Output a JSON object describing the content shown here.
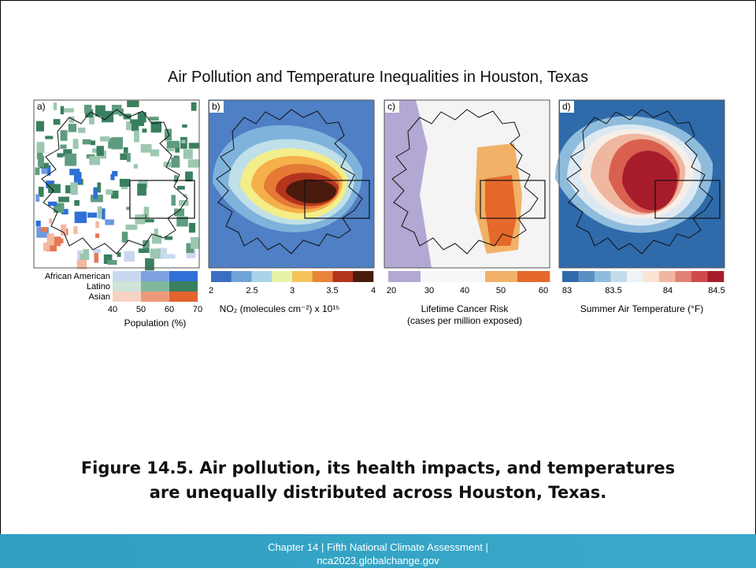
{
  "title": "Air Pollution and Temperature Inequalities in Houston, Texas",
  "panels": [
    {
      "label": "a)",
      "legend_rows": [
        "African American",
        "Latino",
        "Asian"
      ],
      "ticks": [
        "40",
        "50",
        "60",
        "70"
      ],
      "axis_label": "Population (%)"
    },
    {
      "label": "b)",
      "ticks": [
        "2",
        "2.5",
        "3",
        "3.5",
        "4"
      ],
      "axis_label": "NO₂ (molecules cm⁻²) x 10¹⁵"
    },
    {
      "label": "c)",
      "ticks": [
        "20",
        "30",
        "40",
        "50",
        "60"
      ],
      "axis_label": "Lifetime Cancer Risk",
      "axis_sublabel": "(cases per million exposed)"
    },
    {
      "label": "d)",
      "ticks": [
        "83",
        "83.5",
        "84",
        "84.5"
      ],
      "axis_label": "Summer Air Temperature (°F)"
    }
  ],
  "caption": [
    "Figure 14.5. Air pollution, its health impacts, and temperatures",
    "are unequally distributed across Houston, Texas."
  ],
  "footer": [
    "Chapter 14  |  Fifth National Climate Assessment  |",
    "nca2023.globalchange.gov"
  ]
}
